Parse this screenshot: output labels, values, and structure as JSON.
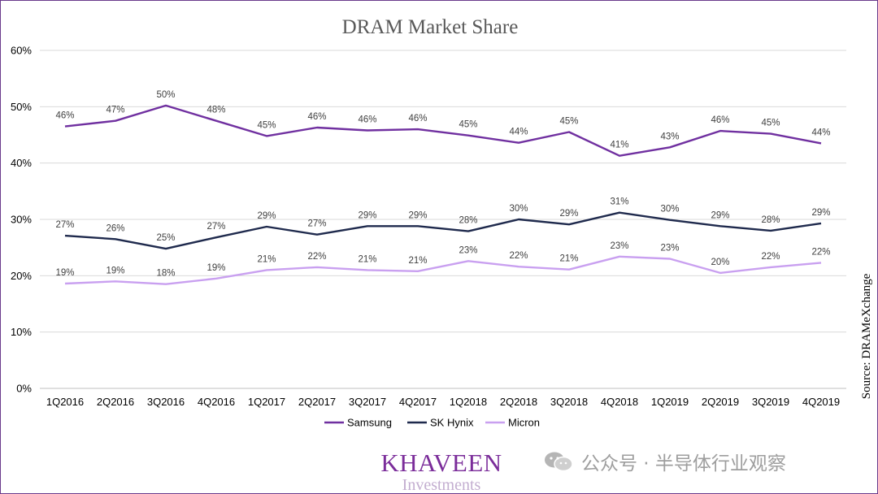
{
  "chart_data": {
    "type": "line",
    "title": "DRAM Market Share",
    "categories": [
      "1Q2016",
      "2Q2016",
      "3Q2016",
      "4Q2016",
      "1Q2017",
      "2Q2017",
      "3Q2017",
      "4Q2017",
      "1Q2018",
      "2Q2018",
      "3Q2018",
      "4Q2018",
      "1Q2019",
      "2Q2019",
      "3Q2019",
      "4Q2019"
    ],
    "y_ticks": [
      "0%",
      "10%",
      "20%",
      "30%",
      "40%",
      "50%",
      "60%"
    ],
    "ylim": [
      0,
      60
    ],
    "grid": true,
    "legend_position": "bottom",
    "series": [
      {
        "name": "Samsung",
        "color": "#7030a0",
        "values": [
          46.5,
          47.5,
          50.2,
          47.5,
          44.8,
          46.3,
          45.8,
          46.0,
          44.9,
          43.6,
          45.5,
          41.3,
          42.8,
          45.7,
          45.2,
          43.5
        ],
        "labels": [
          "46%",
          "47%",
          "50%",
          "48%",
          "45%",
          "46%",
          "46%",
          "46%",
          "45%",
          "44%",
          "45%",
          "41%",
          "43%",
          "46%",
          "45%",
          "44%"
        ]
      },
      {
        "name": "SK Hynix",
        "color": "#1f2a4d",
        "values": [
          27.1,
          26.5,
          24.8,
          26.8,
          28.7,
          27.3,
          28.8,
          28.8,
          27.9,
          30.0,
          29.1,
          31.2,
          29.9,
          28.8,
          28.0,
          29.3
        ],
        "labels": [
          "27%",
          "26%",
          "25%",
          "27%",
          "29%",
          "27%",
          "29%",
          "29%",
          "28%",
          "30%",
          "29%",
          "31%",
          "30%",
          "29%",
          "28%",
          "29%"
        ]
      },
      {
        "name": "Micron",
        "color": "#c9a0f0",
        "values": [
          18.6,
          19.0,
          18.5,
          19.5,
          21.0,
          21.5,
          21.0,
          20.8,
          22.6,
          21.6,
          21.1,
          23.4,
          23.0,
          20.5,
          21.5,
          22.3
        ],
        "labels": [
          "19%",
          "19%",
          "18%",
          "19%",
          "21%",
          "22%",
          "21%",
          "21%",
          "23%",
          "22%",
          "21%",
          "23%",
          "23%",
          "20%",
          "22%",
          "22%"
        ]
      }
    ],
    "source": "Source: DRAMeXchange"
  },
  "branding": {
    "name": "KHAVEEN",
    "subtitle": "Investments"
  },
  "watermark": {
    "text": "公众号 · 半导体行业观察",
    "icon": "wechat-icon"
  }
}
